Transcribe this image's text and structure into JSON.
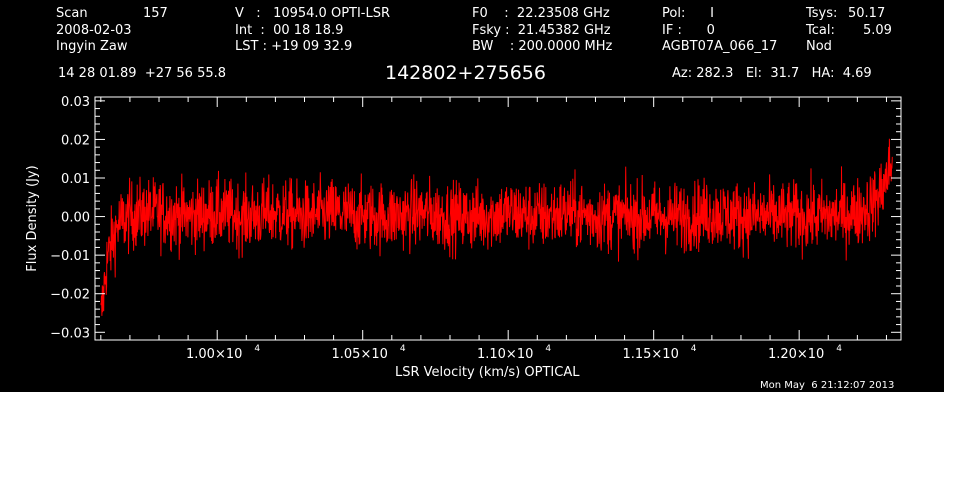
{
  "header": {
    "scan_label": "Scan",
    "scan_number": "157",
    "date": "2008-02-03",
    "observer": "Ingyin Zaw",
    "velocity": "V   :   10954.0 OPTI-LSR",
    "int_time": "Int  :  00 18 18.9",
    "lst": "LST : +19 09 32.9",
    "f0": "F0    :  22.23508 GHz",
    "fsky": "Fsky :  21.45382 GHz",
    "bw": "BW    : 200.0000 MHz",
    "pol": "Pol:      I",
    "if": "IF :      0",
    "project": "AGBT07A_066_17",
    "tsys_label": "Tsys:",
    "tsys_value": "50.17",
    "tcal_label": "Tcal:",
    "tcal_value": "5.09",
    "mode": "Nod",
    "coords": "14 28 01.89  +27 56 55.8",
    "source": "142802+275656",
    "az_el_ha": "Az: 282.3   El:  31.7   HA:  4.69",
    "timestamp": "Mon May  6 21:12:07 2013"
  },
  "colors": {
    "background": "#000000",
    "axes": "#ffffff",
    "trace": "#ff0000"
  },
  "chart_data": {
    "type": "line",
    "xlabel": "LSR Velocity (km/s) OPTICAL",
    "ylabel": "Flux Density (Jy)",
    "xlim": [
      9580,
      12350
    ],
    "ylim": [
      -0.032,
      0.031
    ],
    "x_ticks": [
      10000,
      10500,
      11000,
      11500,
      12000
    ],
    "x_tick_labels": [
      "1.00×10",
      "1.05×10",
      "1.10×10",
      "1.15×10",
      "1.20×10"
    ],
    "x_tick_exponent": "4",
    "y_ticks": [
      -0.03,
      -0.02,
      -0.01,
      0.0,
      0.01,
      0.02,
      0.03
    ],
    "y_tick_labels": [
      "−0.03",
      "−0.02",
      "−0.01",
      "0.00",
      "0.01",
      "0.02",
      "0.03"
    ],
    "series": [
      {
        "x": [
          9600,
          9620,
          9640,
          9660,
          9700,
          9750,
          9800,
          9900,
          10000,
          10100,
          10200,
          10300,
          10400,
          10500,
          10600,
          10700,
          10800,
          10900,
          11000,
          11100,
          11200,
          11300,
          11400,
          11500,
          11600,
          11700,
          11800,
          11900,
          12000,
          12100,
          12200,
          12250,
          12280,
          12300,
          12320
        ],
        "y": [
          -0.027,
          -0.012,
          -0.006,
          -0.002,
          0.0,
          0.001,
          0.001,
          0.0,
          0.001,
          0.0,
          0.001,
          0.0,
          0.001,
          0.0,
          0.0,
          0.001,
          0.0,
          0.0,
          0.001,
          0.0,
          0.001,
          0.0,
          0.0,
          0.0,
          0.0,
          0.001,
          0.0,
          0.0,
          0.0,
          0.0,
          0.001,
          0.003,
          0.006,
          0.01,
          0.014
        ],
        "noise_rms": 0.0045
      }
    ]
  }
}
